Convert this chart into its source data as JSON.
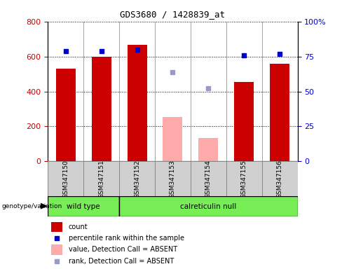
{
  "title": "GDS3680 / 1428839_at",
  "samples": [
    "GSM347150",
    "GSM347151",
    "GSM347152",
    "GSM347153",
    "GSM347154",
    "GSM347155",
    "GSM347156"
  ],
  "red_bars": [
    530,
    598,
    668,
    null,
    null,
    455,
    558
  ],
  "pink_bars": [
    null,
    null,
    null,
    255,
    135,
    null,
    null
  ],
  "blue_squares": [
    630,
    632,
    637,
    null,
    null,
    607,
    615
  ],
  "light_blue_squares": [
    null,
    null,
    null,
    510,
    418,
    null,
    null
  ],
  "ylim_left": [
    0,
    800
  ],
  "ylim_right": [
    0,
    100
  ],
  "yticks_left": [
    0,
    200,
    400,
    600,
    800
  ],
  "yticks_right": [
    0,
    25,
    50,
    75,
    100
  ],
  "ytick_labels_right": [
    "0",
    "25",
    "50",
    "75",
    "100%"
  ],
  "bar_width": 0.55,
  "red_color": "#cc0000",
  "pink_color": "#ffaaaa",
  "blue_color": "#0000cc",
  "light_blue_color": "#9999cc",
  "bg_white": "#ffffff",
  "col_gray": "#d0d0d0",
  "genotype_green": "#77ee55",
  "legend_items": [
    {
      "color": "#cc0000",
      "type": "rect",
      "label": "count"
    },
    {
      "color": "#0000cc",
      "type": "square",
      "label": "percentile rank within the sample"
    },
    {
      "color": "#ffaaaa",
      "type": "rect",
      "label": "value, Detection Call = ABSENT"
    },
    {
      "color": "#9999cc",
      "type": "square",
      "label": "rank, Detection Call = ABSENT"
    }
  ],
  "wild_type_range": [
    0,
    1
  ],
  "calret_range": [
    2,
    6
  ]
}
